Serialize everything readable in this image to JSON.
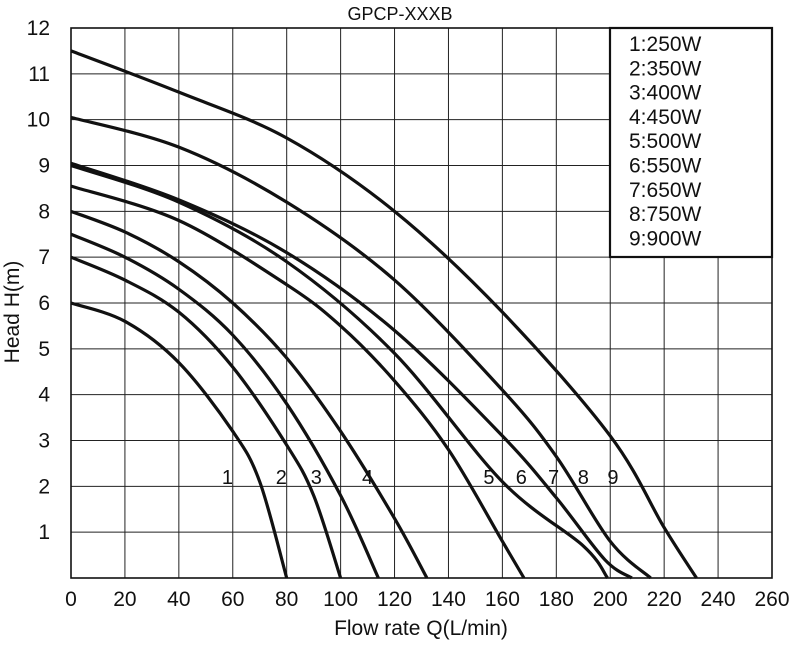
{
  "chart_data": {
    "type": "line",
    "title": "GPCP-XXXB",
    "xlabel": "Flow rate Q(L/min)",
    "ylabel": "Head H(m)",
    "xlim": [
      0,
      260
    ],
    "ylim": [
      0,
      12
    ],
    "x_ticks": [
      0,
      20,
      40,
      60,
      80,
      100,
      120,
      140,
      160,
      180,
      200,
      220,
      240,
      260
    ],
    "y_ticks": [
      1,
      2,
      3,
      4,
      5,
      6,
      7,
      8,
      9,
      10,
      11,
      12
    ],
    "grid": true,
    "legend_position": "top-right",
    "legend": [
      "1:250W",
      "2:350W",
      "3:400W",
      "4:450W",
      "5:500W",
      "6:550W",
      "7:650W",
      "8:750W",
      "9:900W"
    ],
    "series": [
      {
        "name": "1",
        "points": [
          [
            0,
            6.0
          ],
          [
            20,
            5.6
          ],
          [
            40,
            4.7
          ],
          [
            60,
            3.2
          ],
          [
            70,
            2.1
          ],
          [
            80,
            0
          ]
        ],
        "label_at": [
          58,
          2.2
        ]
      },
      {
        "name": "2",
        "points": [
          [
            0,
            7.0
          ],
          [
            20,
            6.5
          ],
          [
            40,
            5.8
          ],
          [
            60,
            4.6
          ],
          [
            80,
            2.9
          ],
          [
            90,
            1.8
          ],
          [
            100,
            0
          ]
        ],
        "label_at": [
          78,
          2.2
        ]
      },
      {
        "name": "3",
        "points": [
          [
            0,
            7.5
          ],
          [
            20,
            7.0
          ],
          [
            40,
            6.3
          ],
          [
            60,
            5.3
          ],
          [
            80,
            3.8
          ],
          [
            100,
            1.8
          ],
          [
            114,
            0
          ]
        ],
        "label_at": [
          91,
          2.2
        ]
      },
      {
        "name": "4",
        "points": [
          [
            0,
            8.0
          ],
          [
            20,
            7.55
          ],
          [
            40,
            6.9
          ],
          [
            60,
            6.0
          ],
          [
            80,
            4.8
          ],
          [
            100,
            3.2
          ],
          [
            120,
            1.3
          ],
          [
            132,
            0
          ]
        ],
        "label_at": [
          110,
          2.2
        ]
      },
      {
        "name": "5",
        "points": [
          [
            0,
            8.55
          ],
          [
            40,
            7.8
          ],
          [
            80,
            6.4
          ],
          [
            100,
            5.5
          ],
          [
            120,
            4.3
          ],
          [
            140,
            2.8
          ],
          [
            160,
            0.8
          ],
          [
            168,
            0
          ]
        ],
        "label_at": [
          155,
          2.2
        ]
      },
      {
        "name": "6",
        "points": [
          [
            0,
            9.0
          ],
          [
            40,
            8.2
          ],
          [
            80,
            6.9
          ],
          [
            120,
            4.9
          ],
          [
            160,
            2.1
          ],
          [
            190,
            0.7
          ],
          [
            199,
            0
          ]
        ],
        "label_at": [
          167,
          2.2
        ]
      },
      {
        "name": "7",
        "points": [
          [
            0,
            9.05
          ],
          [
            40,
            8.25
          ],
          [
            80,
            7.1
          ],
          [
            120,
            5.4
          ],
          [
            160,
            3.1
          ],
          [
            180,
            1.75
          ],
          [
            198,
            0.4
          ],
          [
            208,
            0
          ]
        ],
        "label_at": [
          179,
          2.2
        ]
      },
      {
        "name": "8",
        "points": [
          [
            0,
            10.05
          ],
          [
            40,
            9.4
          ],
          [
            80,
            8.2
          ],
          [
            120,
            6.5
          ],
          [
            160,
            4.1
          ],
          [
            180,
            2.65
          ],
          [
            200,
            0.8
          ],
          [
            215,
            0
          ]
        ],
        "label_at": [
          190,
          2.2
        ]
      },
      {
        "name": "9",
        "points": [
          [
            0,
            11.5
          ],
          [
            40,
            10.6
          ],
          [
            80,
            9.6
          ],
          [
            120,
            8.0
          ],
          [
            160,
            5.8
          ],
          [
            200,
            3.1
          ],
          [
            220,
            1.1
          ],
          [
            232,
            0
          ]
        ],
        "label_at": [
          201,
          2.2
        ]
      }
    ]
  }
}
